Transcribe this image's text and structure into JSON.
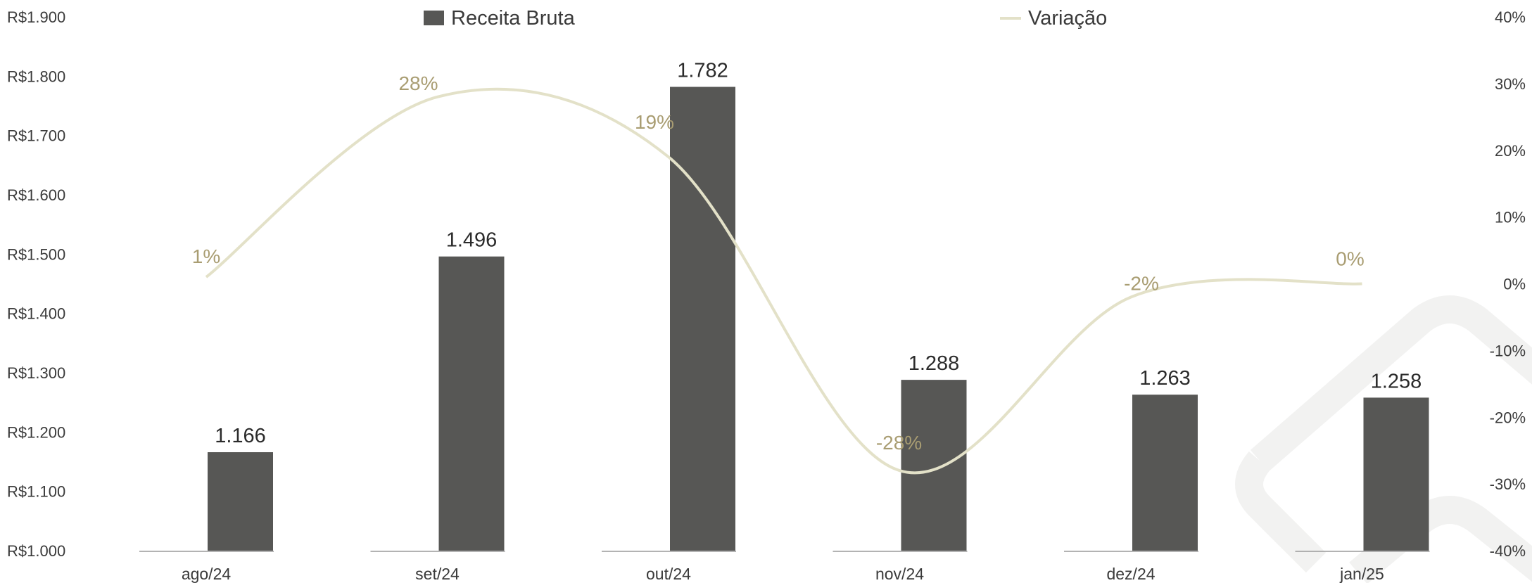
{
  "chart_data": {
    "type": "bar",
    "categories": [
      "ago/24",
      "set/24",
      "out/24",
      "nov/24",
      "dez/24",
      "jan/25"
    ],
    "series": [
      {
        "name": "Receita Bruta",
        "type": "bar",
        "axis": "left",
        "values": [
          1166,
          1496,
          1782,
          1288,
          1263,
          1258
        ],
        "labels": [
          "1.166",
          "1.496",
          "1.782",
          "1.288",
          "1.263",
          "1.258"
        ],
        "color": "#575755"
      },
      {
        "name": "Variação",
        "type": "line",
        "axis": "right",
        "values": [
          1,
          28,
          19,
          -28,
          -2,
          0
        ],
        "labels": [
          "1%",
          "28%",
          "19%",
          "-28%",
          "-2%",
          "0%"
        ],
        "color": "#e3e1c8",
        "label_color": "#a99d72"
      }
    ],
    "y_left": {
      "min": 1000,
      "max": 1900,
      "step": 100,
      "tick_labels": [
        "R$1.000",
        "R$1.100",
        "R$1.200",
        "R$1.300",
        "R$1.400",
        "R$1.500",
        "R$1.600",
        "R$1.700",
        "R$1.800",
        "R$1.900"
      ]
    },
    "y_right": {
      "min": -40,
      "max": 40,
      "step": 10,
      "tick_labels": [
        "-40%",
        "-30%",
        "-20%",
        "-10%",
        "0%",
        "10%",
        "20%",
        "30%",
        "40%"
      ]
    },
    "legend": {
      "position": "top",
      "items": [
        {
          "label": "Receita Bruta",
          "marker": "square",
          "color": "#575755"
        },
        {
          "label": "Variação",
          "marker": "line",
          "color": "#e3e1c8"
        }
      ]
    },
    "grid": false,
    "watermark_icon": "logo-watermark-icon"
  }
}
